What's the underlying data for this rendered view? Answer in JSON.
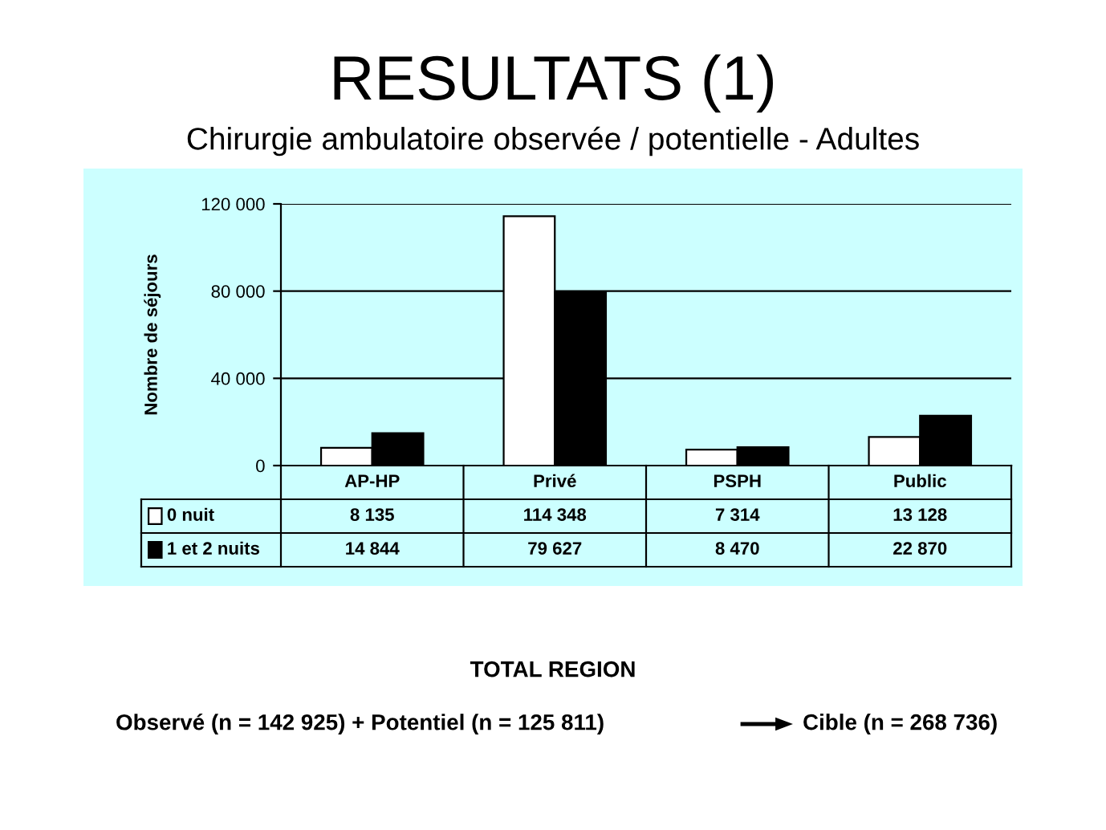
{
  "chart_data": {
    "type": "bar",
    "title": "RESULTATS (1)",
    "subtitle": "Chirurgie ambulatoire observée / potentielle - Adultes",
    "ylabel": "Nombre de séjours",
    "categories": [
      "AP-HP",
      "Privé",
      "PSPH",
      "Public"
    ],
    "series": [
      {
        "name": "0 nuit",
        "color": "#ffffff",
        "values": [
          8135,
          114348,
          7314,
          13128
        ],
        "value_labels": [
          "8 135",
          "114 348",
          "7 314",
          "13 128"
        ]
      },
      {
        "name": "1 et 2 nuits",
        "color": "#000000",
        "values": [
          14844,
          79627,
          8470,
          22870
        ],
        "value_labels": [
          "14 844",
          "79 627",
          "8 470",
          "22 870"
        ]
      }
    ],
    "ylim": [
      0,
      120000
    ],
    "yticks": [
      0,
      {
        "value": 40000,
        "label": "40 000"
      },
      {
        "value": 80000,
        "label": "80 000"
      },
      {
        "value": 120000,
        "label": "120 000"
      }
    ],
    "grid": "y",
    "legend": "bottom",
    "annotations": [
      "TOTAL REGION",
      "Observé (n = 142 925) + Potentiel (n = 125 811)",
      "Cible (n = 268 736)"
    ]
  }
}
